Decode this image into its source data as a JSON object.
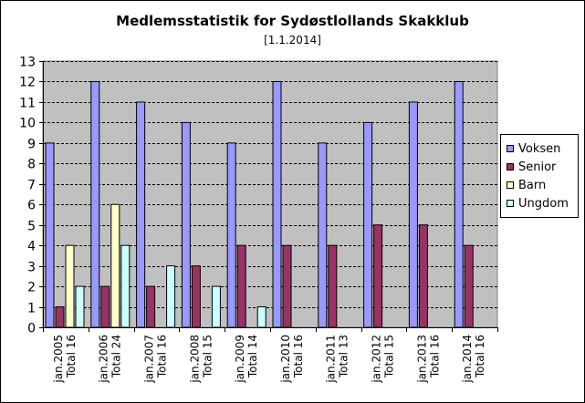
{
  "chart_data": {
    "type": "bar",
    "title": "Medlemsstatistik for Sydøstlollands Skakklub",
    "subtitle": "[1.1.2014]",
    "categories": [
      [
        "jan.2005",
        "Total 16"
      ],
      [
        "jan.2006",
        "Total 24"
      ],
      [
        "jan.2007",
        "Total 16"
      ],
      [
        "jan.2008",
        "Total 15"
      ],
      [
        "jan.2009",
        "Total 14"
      ],
      [
        "jan.2010",
        "Total 16"
      ],
      [
        "jan.2011",
        "Total 13"
      ],
      [
        "jan.2012",
        "Total 15"
      ],
      [
        "jan.2013",
        "Total 16"
      ],
      [
        "jan.2014",
        "Total 16"
      ]
    ],
    "series": [
      {
        "name": "Voksen",
        "color": "#9999ff",
        "values": [
          9,
          12,
          11,
          10,
          9,
          12,
          9,
          10,
          11,
          12
        ]
      },
      {
        "name": "Senior",
        "color": "#993366",
        "values": [
          1,
          2,
          2,
          3,
          4,
          4,
          4,
          5,
          5,
          4
        ]
      },
      {
        "name": "Barn",
        "color": "#ffffcc",
        "values": [
          4,
          6,
          0,
          0,
          0,
          0,
          0,
          0,
          0,
          0
        ]
      },
      {
        "name": "Ungdom",
        "color": "#ccffff",
        "values": [
          2,
          4,
          3,
          2,
          1,
          0,
          0,
          0,
          0,
          0
        ]
      }
    ],
    "ylim": [
      0,
      13
    ],
    "yticks": [
      0,
      1,
      2,
      3,
      4,
      5,
      6,
      7,
      8,
      9,
      10,
      11,
      12,
      13
    ],
    "grid": true,
    "legend": "right",
    "plot_background": "#c0c0c0"
  }
}
